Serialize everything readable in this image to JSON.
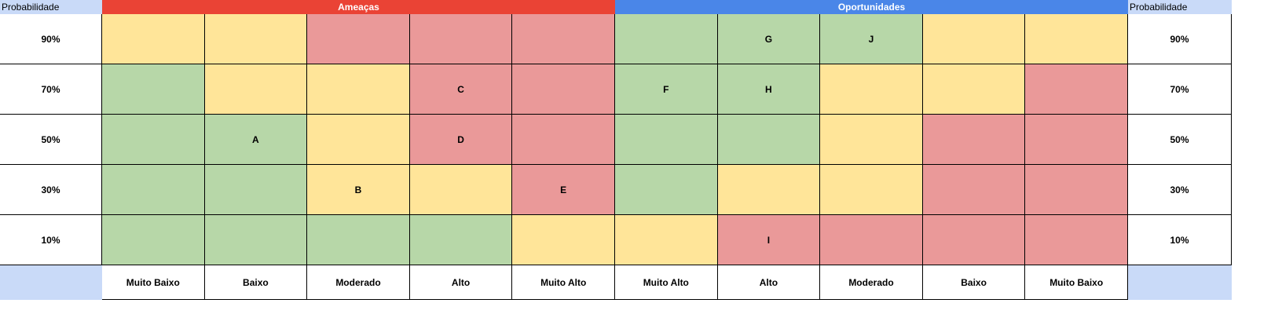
{
  "header": {
    "left_label": "Probabilidade",
    "right_label": "Probabilidade",
    "threats_label": "Ameaças",
    "opportunities_label": "Oportunidades"
  },
  "colors": {
    "threats_header": "#ea4335",
    "opportunities_header": "#4a86e8",
    "corner": "#c9daf8",
    "low": "#b7d7a8",
    "medium": "#ffe599",
    "high": "#ea9999"
  },
  "chart_data": {
    "type": "heatmap",
    "rows": [
      "90%",
      "70%",
      "50%",
      "30%",
      "10%"
    ],
    "columns": [
      "Muito Baixo",
      "Baixo",
      "Moderado",
      "Alto",
      "Muito Alto",
      "Muito Alto",
      "Alto",
      "Moderado",
      "Baixo",
      "Muito Baixo"
    ],
    "column_groups": [
      {
        "name": "Ameaças",
        "start": 0,
        "end": 4
      },
      {
        "name": "Oportunidades",
        "start": 5,
        "end": 9
      }
    ],
    "levels": [
      [
        "medium",
        "medium",
        "high",
        "high",
        "high",
        "low",
        "low",
        "low",
        "medium",
        "medium"
      ],
      [
        "low",
        "medium",
        "medium",
        "high",
        "high",
        "low",
        "low",
        "medium",
        "medium",
        "high"
      ],
      [
        "low",
        "low",
        "medium",
        "high",
        "high",
        "low",
        "low",
        "medium",
        "high",
        "high"
      ],
      [
        "low",
        "low",
        "medium",
        "medium",
        "high",
        "low",
        "medium",
        "medium",
        "high",
        "high"
      ],
      [
        "low",
        "low",
        "low",
        "low",
        "medium",
        "medium",
        "high",
        "high",
        "high",
        "high"
      ]
    ],
    "labels": [
      [
        "",
        "",
        "",
        "",
        "",
        "",
        "G",
        "J",
        "",
        ""
      ],
      [
        "",
        "",
        "",
        "C",
        "",
        "F",
        "H",
        "",
        "",
        ""
      ],
      [
        "",
        "A",
        "",
        "D",
        "",
        "",
        "",
        "",
        "",
        ""
      ],
      [
        "",
        "",
        "B",
        "",
        "E",
        "",
        "",
        "",
        "",
        ""
      ],
      [
        "",
        "",
        "",
        "",
        "",
        "",
        "I",
        "",
        "",
        ""
      ]
    ]
  }
}
